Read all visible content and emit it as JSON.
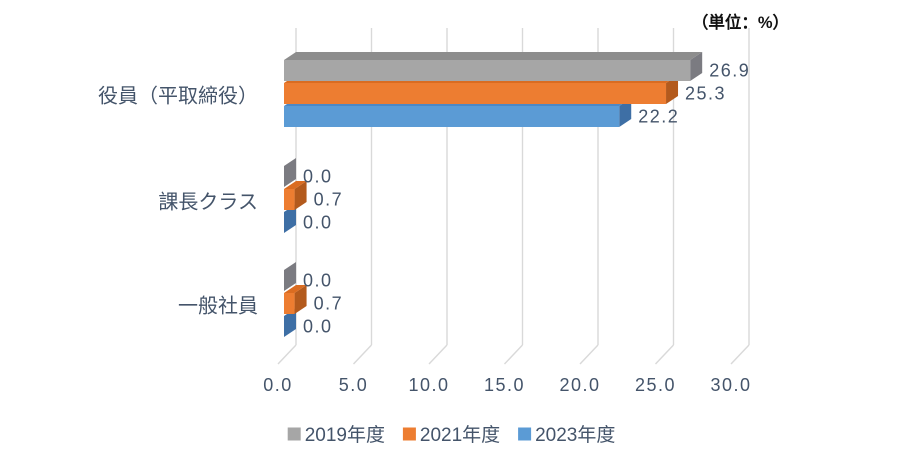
{
  "chart_data": {
    "type": "bar",
    "orientation": "horizontal",
    "style": "3d",
    "unit_label": "（単位：%）",
    "categories": [
      "役員（平取締役）",
      "課長クラス",
      "一般社員"
    ],
    "series": [
      {
        "name": "2019年度",
        "values": [
          26.9,
          0.0,
          0.0
        ],
        "color": "#a6a6a6",
        "color_top": "#8d8d8d",
        "color_side": "#7b7b81"
      },
      {
        "name": "2021年度",
        "values": [
          25.3,
          0.7,
          0.7
        ],
        "color": "#ed7d31",
        "color_top": "#da6c21",
        "color_side": "#b35a1d"
      },
      {
        "name": "2023年度",
        "values": [
          22.2,
          0.0,
          0.0
        ],
        "color": "#5b9bd5",
        "color_top": "#4d88c4",
        "color_side": "#3e6fa5"
      }
    ],
    "x_ticks": [
      "0.0",
      "5.0",
      "10.0",
      "15.0",
      "20.0",
      "25.0",
      "30.0"
    ],
    "xlim": [
      0,
      30
    ],
    "x_tick_step": 5,
    "gridlines": true,
    "value_labels_shown": true,
    "legend_position": "bottom"
  },
  "colors": {
    "gridline": "#d9d9d9",
    "text": "#44546a",
    "unit_text": "#111111",
    "background": "#ffffff"
  }
}
